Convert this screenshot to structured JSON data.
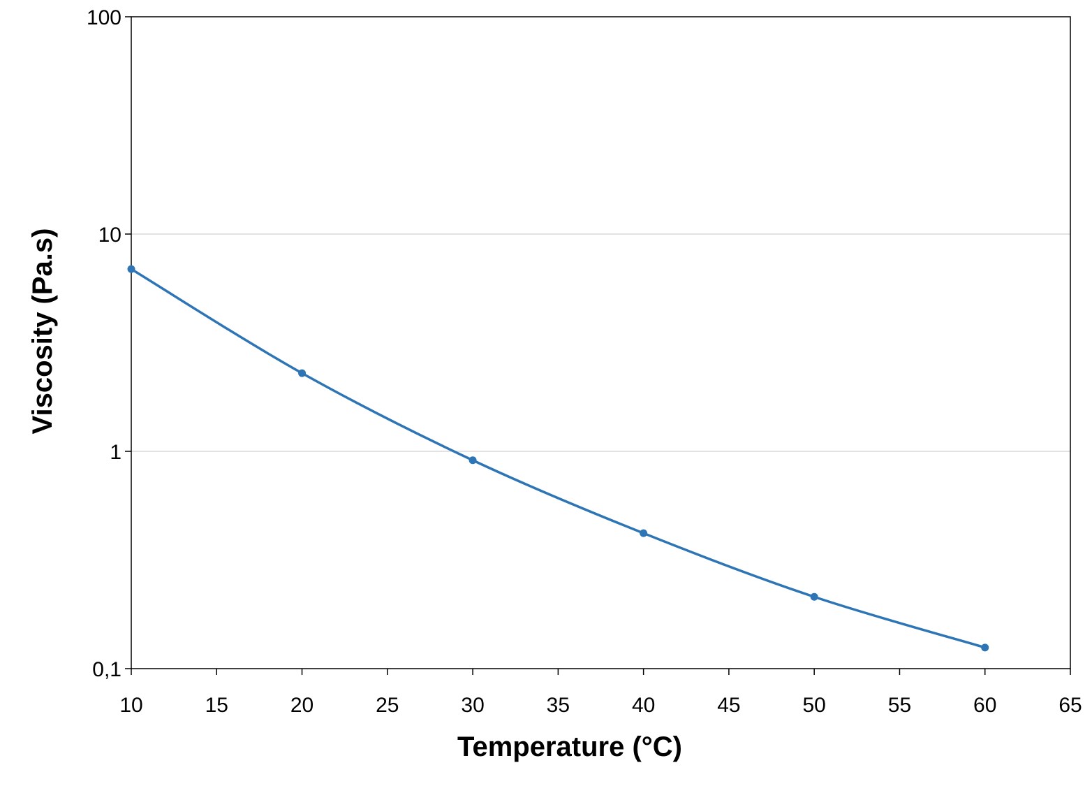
{
  "chart_data": {
    "type": "line",
    "title": "",
    "xlabel": "Temperature (°C)",
    "ylabel": "Viscosity (Pa.s)",
    "xlim": [
      10,
      65
    ],
    "ylim": [
      0.1,
      100
    ],
    "yscale": "log",
    "grid": {
      "horizontal": true,
      "vertical": false
    },
    "smoothed": true,
    "x_ticks": [
      "10",
      "15",
      "20",
      "25",
      "30",
      "35",
      "40",
      "45",
      "50",
      "55",
      "60",
      "65"
    ],
    "x_tick_values": [
      10,
      15,
      20,
      25,
      30,
      35,
      40,
      45,
      50,
      55,
      60,
      65
    ],
    "y_ticks": [
      "0,1",
      "1",
      "10",
      "100"
    ],
    "y_tick_values": [
      0.1,
      1,
      10,
      100
    ],
    "series": [
      {
        "color": "#2E75B6",
        "x": [
          10,
          20,
          30,
          40,
          50,
          60
        ],
        "y": [
          6.9,
          2.29,
          0.91,
          0.42,
          0.214,
          0.125
        ]
      }
    ]
  }
}
